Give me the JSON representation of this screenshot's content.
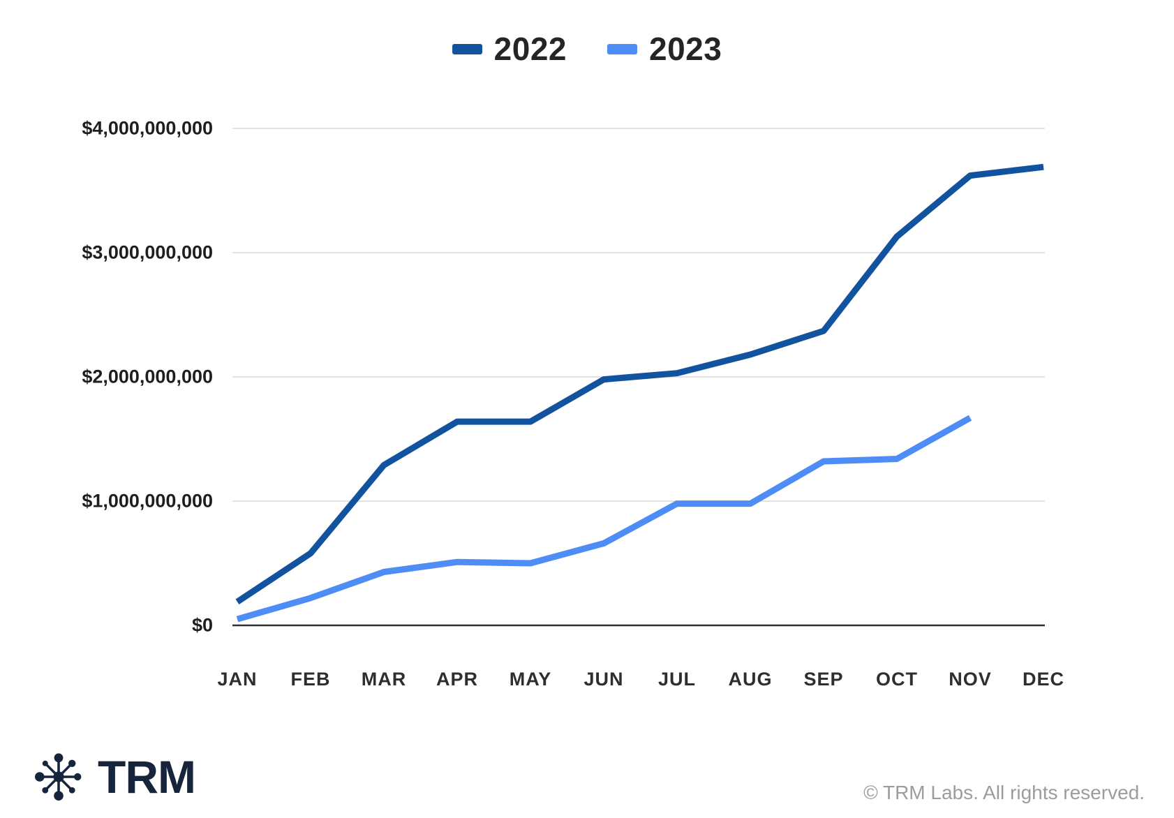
{
  "chart_data": {
    "type": "line",
    "categories": [
      "JAN",
      "FEB",
      "MAR",
      "APR",
      "MAY",
      "JUN",
      "JUL",
      "AUG",
      "SEP",
      "OCT",
      "NOV",
      "DEC"
    ],
    "series": [
      {
        "name": "2022",
        "color": "#1253a0",
        "values": [
          190000000,
          580000000,
          1290000000,
          1640000000,
          1640000000,
          1980000000,
          2030000000,
          2180000000,
          2370000000,
          3130000000,
          3620000000,
          3690000000
        ]
      },
      {
        "name": "2023",
        "color": "#4d8df5",
        "values": [
          50000000,
          220000000,
          430000000,
          510000000,
          500000000,
          660000000,
          980000000,
          980000000,
          1320000000,
          1340000000,
          1670000000,
          null
        ]
      }
    ],
    "title": "",
    "xlabel": "",
    "ylabel": "",
    "ylim": [
      0,
      4000000000
    ],
    "ytick_values": [
      0,
      1000000000,
      2000000000,
      3000000000,
      4000000000
    ],
    "ytick_labels": [
      "$0",
      "$1,000,000,000",
      "$2,000,000,000",
      "$3,000,000,000",
      "$4,000,000,000"
    ],
    "grid": "horizontal",
    "legend_position": "top"
  },
  "colors": {
    "grid": "#d9d9d9",
    "axis": "#2f2f2f",
    "logo": "#16243c"
  },
  "footer": {
    "logo_text": "TRM",
    "copyright": "© TRM Labs. All rights reserved."
  }
}
